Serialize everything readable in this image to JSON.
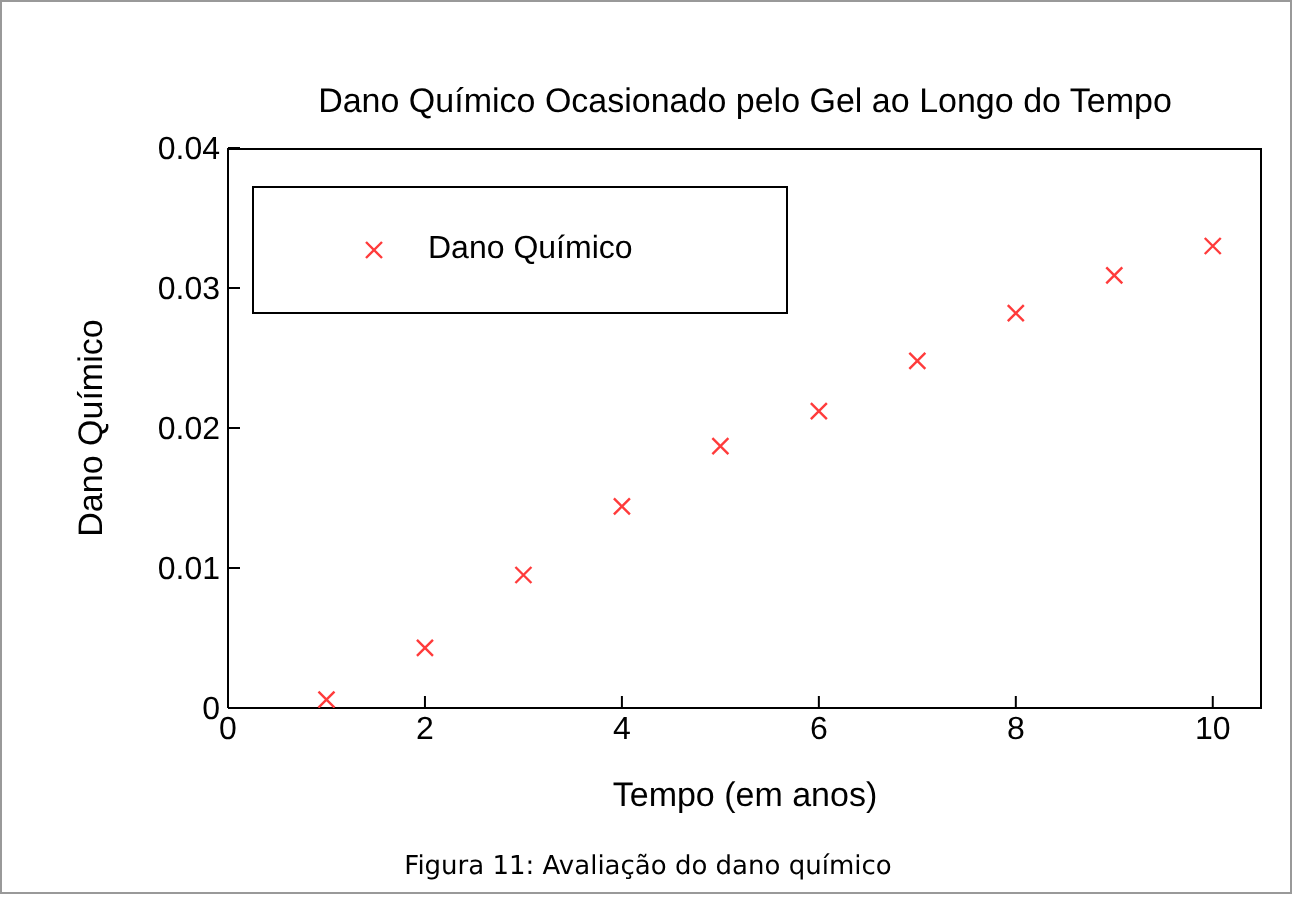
{
  "chart_data": {
    "type": "scatter",
    "title": "Dano Químico Ocasionado pelo Gel ao Longo do Tempo",
    "xlabel": "Tempo (em anos)",
    "ylabel": "Dano Químico",
    "x": [
      1,
      2,
      3,
      4,
      5,
      6,
      7,
      8,
      9,
      10
    ],
    "series": [
      {
        "name": "Dano Químico",
        "color": "#ff3b3b",
        "values": [
          0.0006,
          0.0043,
          0.0095,
          0.0144,
          0.0187,
          0.0212,
          0.0248,
          0.0282,
          0.0309,
          0.033
        ]
      }
    ],
    "xlim": [
      0,
      10.5
    ],
    "xticks": [
      0,
      2,
      4,
      6,
      8,
      10
    ],
    "ylim": [
      0,
      0.04
    ],
    "yticks": [
      0,
      0.01,
      0.02,
      0.03,
      0.04
    ],
    "marker": "cross",
    "legend": "top left",
    "grid": false,
    "annotations": [
      "Figura 11: Avaliação do dano químico"
    ]
  }
}
